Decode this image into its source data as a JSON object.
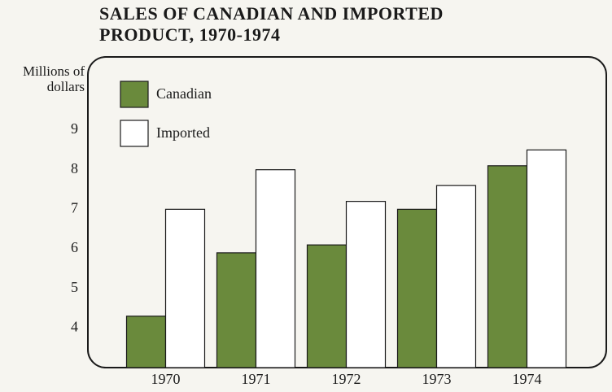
{
  "chart_data": {
    "type": "bar",
    "title": "SALES OF CANADIAN AND IMPORTED PRODUCT, 1970-1974",
    "y_label": "Millions of dollars",
    "categories": [
      "1970",
      "1971",
      "1972",
      "1973",
      "1974"
    ],
    "series": [
      {
        "name": "Canadian",
        "color": "#6a8a3c",
        "values": [
          4.3,
          5.9,
          6.1,
          7.0,
          8.1
        ]
      },
      {
        "name": "Imported",
        "color": "#ffffff",
        "values": [
          7.0,
          8.0,
          7.2,
          7.6,
          8.5
        ]
      }
    ],
    "ylim": [
      3,
      10.85
    ],
    "yticks": [
      4,
      5,
      6,
      7,
      8,
      9
    ],
    "grid": false,
    "legend": "top-left"
  }
}
